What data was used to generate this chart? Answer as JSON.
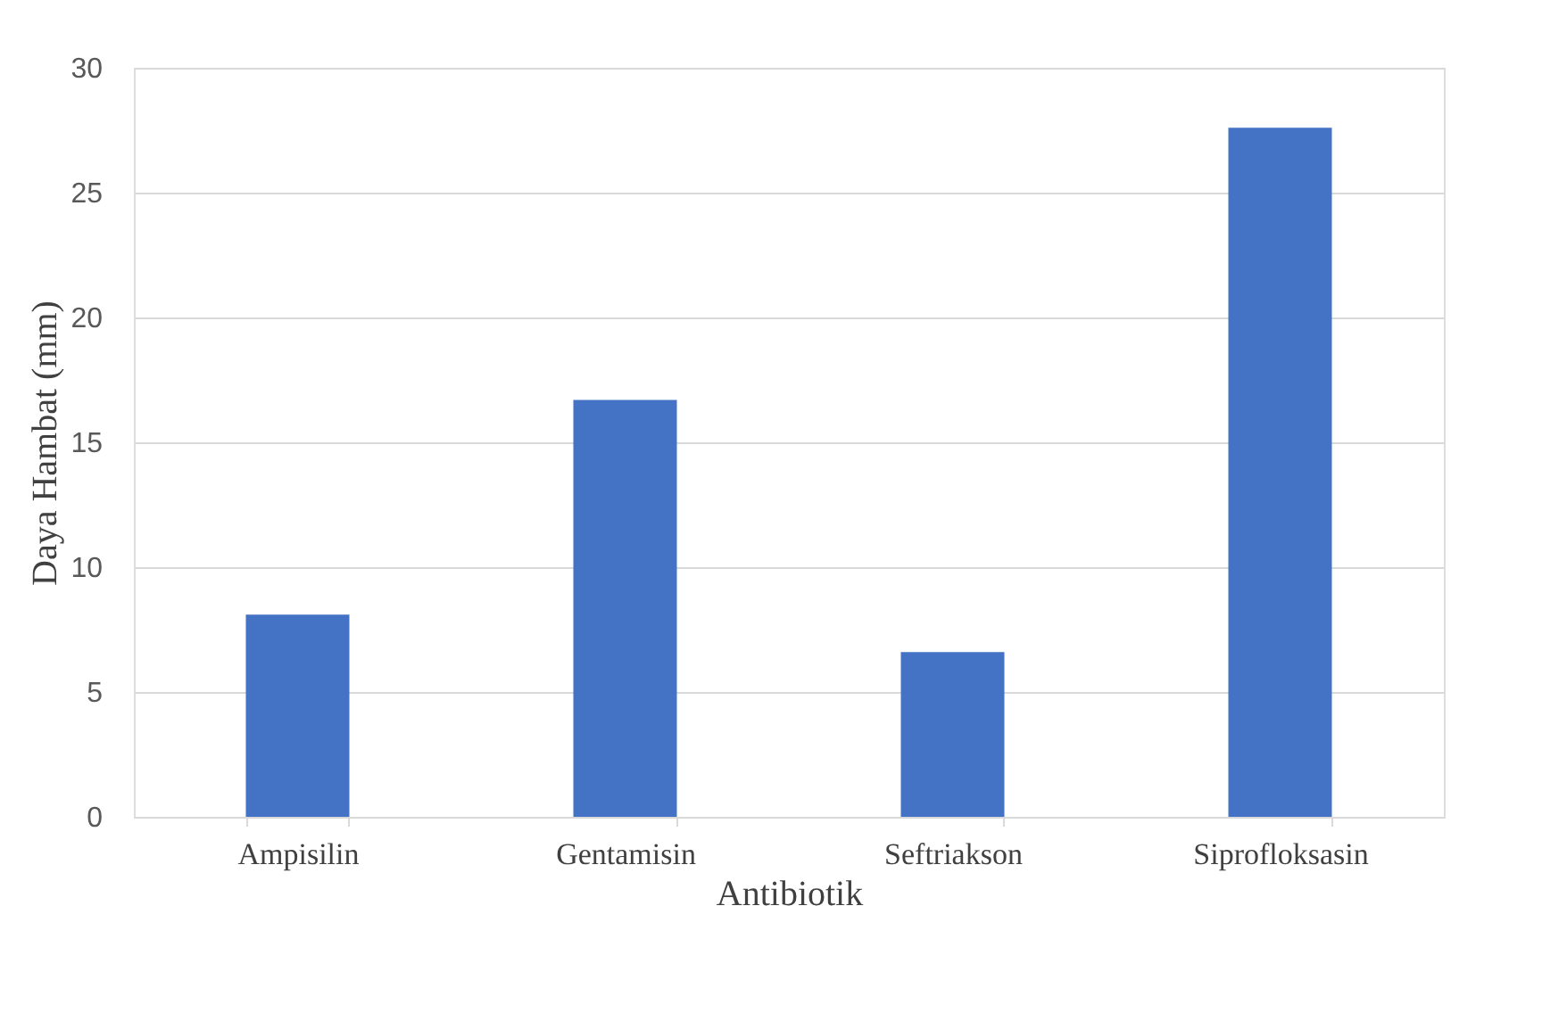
{
  "chart_data": {
    "type": "bar",
    "xlabel": "Antibiotik",
    "ylabel": "Daya Hambat (mm)",
    "categories": [
      "Ampisilin",
      "Gentamisin",
      "Seftriakson",
      "Siprofloksasin"
    ],
    "values": [
      8.1,
      16.7,
      6.6,
      27.6
    ],
    "color": "#4472c4",
    "ylim": [
      0,
      30
    ],
    "yticks": [
      0,
      5,
      10,
      15,
      20,
      25,
      30
    ],
    "grid": "y"
  }
}
